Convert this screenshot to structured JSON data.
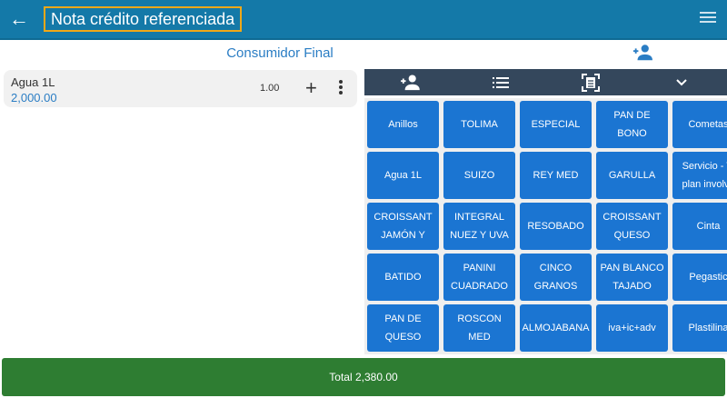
{
  "header": {
    "title": "Nota crédito referenciada",
    "back_icon": "arrow-left-icon",
    "menu_icon": "hamburger-icon"
  },
  "customer": {
    "name": "Consumidor Final"
  },
  "cart": [
    {
      "name": "Agua 1L",
      "price": "2,000.00",
      "qty": "1.00"
    }
  ],
  "toolbar": [
    "person-add-icon",
    "list-icon",
    "scan-document-icon",
    "chevron-down-icon"
  ],
  "products": [
    [
      "Anillos",
      "TOLIMA",
      "ESPECIAL",
      "PAN DE BONO",
      "Cometas"
    ],
    [
      "Agua 1L",
      "SUIZO",
      "REY MED",
      "GARULLA",
      "Servicio - Tl\nplan involve"
    ],
    [
      "CROISSANT\nJAMÓN Y",
      "INTEGRAL\nNUEZ Y UVA",
      "RESOBADO",
      "CROISSANT\nQUESO",
      "Cinta"
    ],
    [
      "BATIDO",
      "PANINI\nCUADRADO",
      "CINCO\nGRANOS",
      "PAN BLANCO\nTAJADO",
      "Pegastic"
    ],
    [
      "PAN DE\nQUESO",
      "ROSCON MED",
      "ALMOJABANA",
      "iva+ic+adv",
      "Plastilina"
    ]
  ],
  "total": {
    "label": "Total 2,380.00"
  },
  "colors": {
    "header": "#1479a8",
    "accent": "#2a7dc4",
    "tile": "#1b75d2",
    "toolbar": "#34475c",
    "total": "#2e7d32",
    "title_outline": "#f0a818"
  }
}
